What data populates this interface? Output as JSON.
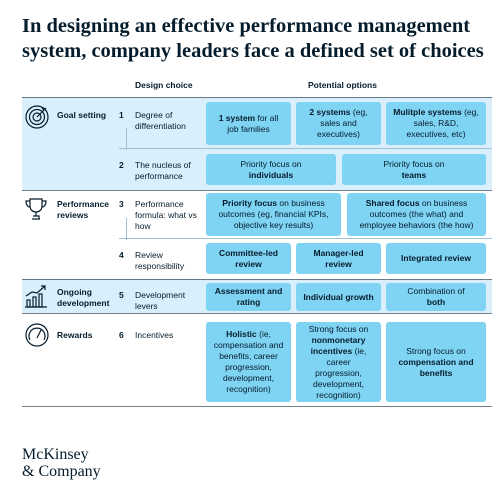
{
  "title": "In designing an effective performance management system, company leaders face a defined set of choices",
  "headers": {
    "design_choice": "Design choice",
    "potential_options": "Potential options"
  },
  "groups": [
    {
      "label": "Goal setting",
      "icon": "target-icon"
    },
    {
      "label": "Performance reviews",
      "icon": "trophy-icon"
    },
    {
      "label": "Ongoing development",
      "icon": "growth-chart-icon"
    },
    {
      "label": "Rewards",
      "icon": "gauge-icon"
    }
  ],
  "rows": [
    {
      "number": "1",
      "choice": "Degree of differentiation",
      "options": [
        {
          "bold": "1 system",
          "text": " for all job families"
        },
        {
          "bold": "2 systems",
          "text": " (eg, sales and executives)"
        },
        {
          "bold": "Mulitple systems",
          "text": " (eg, sales, R&D, executives, etc)"
        }
      ]
    },
    {
      "number": "2",
      "choice": "The nucleus of performance",
      "options": [
        {
          "text": "Priority focus on ",
          "bold": "individuals"
        },
        {
          "text": "Priority focus on ",
          "bold": "teams"
        }
      ]
    },
    {
      "number": "3",
      "choice": "Performance formula: what vs how",
      "options": [
        {
          "bold": "Priority focus",
          "text": " on business outcomes (eg, financial KPIs, objective key results)"
        },
        {
          "bold": "Shared focus",
          "text": " on business outcomes (the what) and employee behaviors (the how)"
        }
      ]
    },
    {
      "number": "4",
      "choice": "Review responsibility",
      "options": [
        {
          "bold": "Committee-led review"
        },
        {
          "bold": "Manager-led review"
        },
        {
          "bold": "Integrated review"
        }
      ]
    },
    {
      "number": "5",
      "choice": "Development levers",
      "options": [
        {
          "bold": "Assessment and rating"
        },
        {
          "bold": "Individual growth"
        },
        {
          "text": "Combination of ",
          "bold": "both"
        }
      ]
    },
    {
      "number": "6",
      "choice": "Incentives",
      "options": [
        {
          "bold": "Holistic",
          "text": " (ie, compensation and benefits, career progression, development, recognition)"
        },
        {
          "text": "Strong focus on ",
          "bold": "nonmonetary incentives",
          "text2": " (ie, career progression, development, recognition)"
        },
        {
          "text": "Strong focus on ",
          "bold": "compensation and benefits"
        }
      ]
    }
  ],
  "logo": {
    "line1": "McKinsey",
    "line2": "& Company"
  },
  "colors": {
    "navy": "#051c2c",
    "option_fill": "#7fd3f3",
    "band_fill": "#d9effc"
  }
}
